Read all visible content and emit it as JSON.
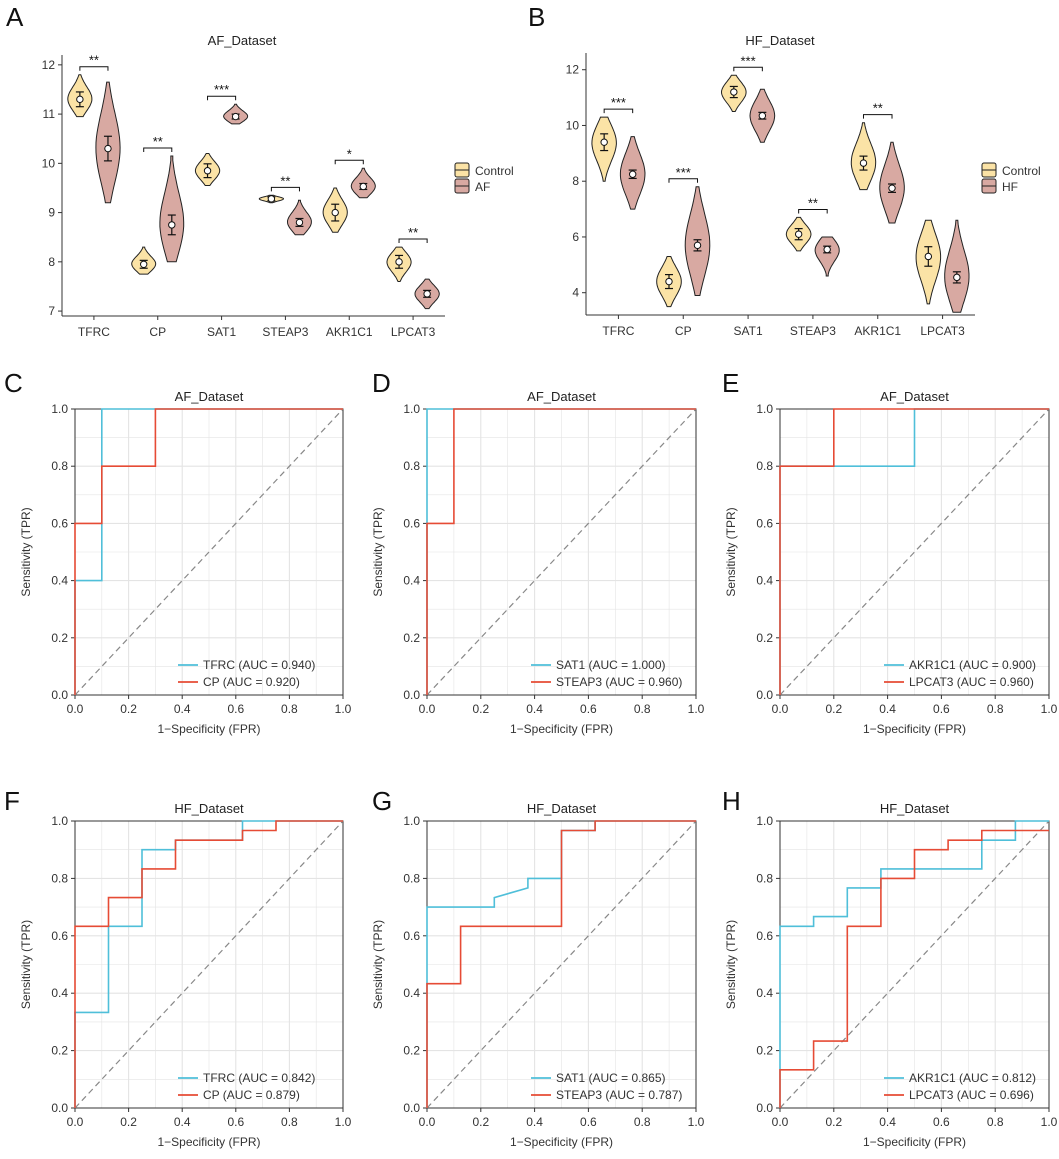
{
  "colors": {
    "control_fill": "#FBE3A6",
    "case_fill": "#D8A9A2",
    "outline": "#222222",
    "roc_series1": "#4FBFD9",
    "roc_series2": "#E64B35",
    "diagonal": "#888888",
    "grid": "#E4E4E4"
  },
  "chart_data": [
    {
      "type": "violin",
      "letter": "A",
      "title": "AF_Dataset",
      "categories": [
        "TFRC",
        "CP",
        "SAT1",
        "STEAP3",
        "AKR1C1",
        "LPCAT3"
      ],
      "ylim": [
        6.9,
        12.2
      ],
      "yticks": [
        7,
        8,
        9,
        10,
        11,
        12
      ],
      "legend": [
        "Control",
        "AF"
      ],
      "groups": [
        {
          "name": "Control",
          "means": [
            11.3,
            7.95,
            9.85,
            9.28,
            9.0,
            8.0
          ],
          "ranges": [
            [
              10.95,
              11.8
            ],
            [
              7.75,
              8.3
            ],
            [
              9.55,
              10.2
            ],
            [
              9.2,
              9.35
            ],
            [
              8.6,
              9.5
            ],
            [
              7.6,
              8.3
            ]
          ],
          "errors": [
            0.15,
            0.08,
            0.14,
            0.04,
            0.17,
            0.13
          ]
        },
        {
          "name": "AF",
          "means": [
            10.3,
            8.75,
            10.95,
            8.8,
            9.53,
            7.35
          ],
          "ranges": [
            [
              9.2,
              11.65
            ],
            [
              8.0,
              10.15
            ],
            [
              10.8,
              11.2
            ],
            [
              8.55,
              9.25
            ],
            [
              9.3,
              9.9
            ],
            [
              7.05,
              7.65
            ]
          ],
          "errors": [
            0.25,
            0.2,
            0.05,
            0.08,
            0.06,
            0.07
          ]
        }
      ],
      "significance": [
        "**",
        "**",
        "***",
        "**",
        "*",
        "**"
      ]
    },
    {
      "type": "violin",
      "letter": "B",
      "title": "HF_Dataset",
      "categories": [
        "TFRC",
        "CP",
        "SAT1",
        "STEAP3",
        "AKR1C1",
        "LPCAT3"
      ],
      "ylim": [
        3.2,
        12.6
      ],
      "yticks": [
        4,
        6,
        8,
        10,
        12
      ],
      "legend": [
        "Control",
        "HF"
      ],
      "groups": [
        {
          "name": "Control",
          "means": [
            9.4,
            4.4,
            11.2,
            6.1,
            8.65,
            5.3
          ],
          "ranges": [
            [
              8.0,
              10.3
            ],
            [
              3.5,
              5.3
            ],
            [
              10.5,
              11.8
            ],
            [
              5.5,
              6.7
            ],
            [
              7.7,
              10.1
            ],
            [
              3.6,
              6.6
            ]
          ],
          "errors": [
            0.3,
            0.25,
            0.2,
            0.2,
            0.25,
            0.35
          ]
        },
        {
          "name": "HF",
          "means": [
            8.25,
            5.7,
            10.35,
            5.55,
            7.75,
            4.55
          ],
          "ranges": [
            [
              7.0,
              9.6
            ],
            [
              3.9,
              7.8
            ],
            [
              9.4,
              11.3
            ],
            [
              4.6,
              6.0
            ],
            [
              6.5,
              9.4
            ],
            [
              3.3,
              6.6
            ]
          ],
          "errors": [
            0.15,
            0.2,
            0.12,
            0.12,
            0.15,
            0.2
          ]
        }
      ],
      "significance": [
        "***",
        "***",
        "***",
        "**",
        "**",
        ""
      ]
    },
    {
      "type": "line",
      "subtype": "roc",
      "letter": "C",
      "title": "AF_Dataset",
      "xlabel": "1−Specificity (FPR)",
      "ylabel": "Sensitivity (TPR)",
      "xlim": [
        0,
        1
      ],
      "ylim": [
        0,
        1
      ],
      "ticks": [
        "0.0",
        "0.2",
        "0.4",
        "0.6",
        "0.8",
        "1.0"
      ],
      "series": [
        {
          "name": "TFRC",
          "auc": "0.940",
          "label": "TFRC (AUC = 0.940)",
          "x": [
            0,
            0,
            0.1,
            0.1,
            1
          ],
          "y": [
            0,
            0.4,
            0.4,
            1,
            1
          ]
        },
        {
          "name": "CP",
          "auc": "0.920",
          "label": "CP (AUC = 0.920)",
          "x": [
            0,
            0,
            0.1,
            0.1,
            0.3,
            0.3,
            1
          ],
          "y": [
            0,
            0.6,
            0.6,
            0.8,
            0.8,
            1,
            1
          ]
        }
      ]
    },
    {
      "type": "line",
      "subtype": "roc",
      "letter": "D",
      "title": "AF_Dataset",
      "xlabel": "1−Specificity (FPR)",
      "ylabel": "Sensitivity (TPR)",
      "xlim": [
        0,
        1
      ],
      "ylim": [
        0,
        1
      ],
      "ticks": [
        "0.0",
        "0.2",
        "0.4",
        "0.6",
        "0.8",
        "1.0"
      ],
      "series": [
        {
          "name": "SAT1",
          "auc": "1.000",
          "label": "SAT1 (AUC = 1.000)",
          "x": [
            0,
            0,
            1
          ],
          "y": [
            0,
            1,
            1
          ]
        },
        {
          "name": "STEAP3",
          "auc": "0.960",
          "label": "STEAP3 (AUC = 0.960)",
          "x": [
            0,
            0,
            0.1,
            0.1,
            1
          ],
          "y": [
            0,
            0.6,
            0.6,
            1,
            1
          ]
        }
      ]
    },
    {
      "type": "line",
      "subtype": "roc",
      "letter": "E",
      "title": "AF_Dataset",
      "xlabel": "1−Specificity (FPR)",
      "ylabel": "Sensitivity (TPR)",
      "xlim": [
        0,
        1
      ],
      "ylim": [
        0,
        1
      ],
      "ticks": [
        "0.0",
        "0.2",
        "0.4",
        "0.6",
        "0.8",
        "1.0"
      ],
      "series": [
        {
          "name": "AKR1C1",
          "auc": "0.900",
          "label": "AKR1C1 (AUC = 0.900)",
          "x": [
            0,
            0,
            0.5,
            0.5,
            1
          ],
          "y": [
            0,
            0.8,
            0.8,
            1,
            1
          ]
        },
        {
          "name": "LPCAT3",
          "auc": "0.960",
          "label": "LPCAT3 (AUC = 0.960)",
          "x": [
            0,
            0,
            0.2,
            0.2,
            1
          ],
          "y": [
            0,
            0.8,
            0.8,
            1,
            1
          ]
        }
      ]
    },
    {
      "type": "line",
      "subtype": "roc",
      "letter": "F",
      "title": "HF_Dataset",
      "xlabel": "1−Specificity (FPR)",
      "ylabel": "Sensitivity (TPR)",
      "xlim": [
        0,
        1
      ],
      "ylim": [
        0,
        1
      ],
      "ticks": [
        "0.0",
        "0.2",
        "0.4",
        "0.6",
        "0.8",
        "1.0"
      ],
      "series": [
        {
          "name": "TFRC",
          "auc": "0.842",
          "label": "TFRC (AUC = 0.842)",
          "x": [
            0,
            0,
            0.125,
            0.125,
            0.25,
            0.25,
            0.375,
            0.375,
            0.625,
            0.625,
            0.75,
            0.75,
            1
          ],
          "y": [
            0,
            0.333,
            0.333,
            0.633,
            0.633,
            0.9,
            0.9,
            0.933,
            0.933,
            1,
            1,
            1,
            1
          ]
        },
        {
          "name": "CP",
          "auc": "0.879",
          "label": "CP (AUC = 0.879)",
          "x": [
            0,
            0,
            0.125,
            0.125,
            0.25,
            0.25,
            0.375,
            0.375,
            0.625,
            0.625,
            0.75,
            0.75,
            1
          ],
          "y": [
            0,
            0.633,
            0.633,
            0.733,
            0.733,
            0.833,
            0.833,
            0.933,
            0.933,
            0.967,
            0.967,
            1,
            1
          ]
        }
      ]
    },
    {
      "type": "line",
      "subtype": "roc",
      "letter": "G",
      "title": "HF_Dataset",
      "xlabel": "1−Specificity (FPR)",
      "ylabel": "Sensitivity (TPR)",
      "xlim": [
        0,
        1
      ],
      "ylim": [
        0,
        1
      ],
      "ticks": [
        "0.0",
        "0.2",
        "0.4",
        "0.6",
        "0.8",
        "1.0"
      ],
      "series": [
        {
          "name": "SAT1",
          "auc": "0.865",
          "label": "SAT1 (AUC = 0.865)",
          "x": [
            0,
            0,
            0.25,
            0.25,
            0.375,
            0.375,
            0.5,
            0.5,
            0.625,
            0.625,
            1
          ],
          "y": [
            0,
            0.7,
            0.7,
            0.733,
            0.767,
            0.8,
            0.8,
            0.967,
            0.967,
            1,
            1
          ]
        },
        {
          "name": "STEAP3",
          "auc": "0.787",
          "label": "STEAP3 (AUC = 0.787)",
          "x": [
            0,
            0,
            0.125,
            0.125,
            0.5,
            0.5,
            0.625,
            0.625,
            1
          ],
          "y": [
            0,
            0.433,
            0.433,
            0.633,
            0.633,
            0.967,
            0.967,
            1,
            1
          ]
        }
      ]
    },
    {
      "type": "line",
      "subtype": "roc",
      "letter": "H",
      "title": "HF_Dataset",
      "xlabel": "1−Specificity (FPR)",
      "ylabel": "Sensitivity (TPR)",
      "xlim": [
        0,
        1
      ],
      "ylim": [
        0,
        1
      ],
      "ticks": [
        "0.0",
        "0.2",
        "0.4",
        "0.6",
        "0.8",
        "1.0"
      ],
      "series": [
        {
          "name": "AKR1C1",
          "auc": "0.812",
          "label": "AKR1C1 (AUC = 0.812)",
          "x": [
            0,
            0,
            0.125,
            0.125,
            0.25,
            0.25,
            0.375,
            0.375,
            0.75,
            0.75,
            0.875,
            0.875,
            1
          ],
          "y": [
            0,
            0.633,
            0.633,
            0.667,
            0.667,
            0.767,
            0.767,
            0.833,
            0.833,
            0.933,
            0.933,
            1,
            1
          ]
        },
        {
          "name": "LPCAT3",
          "auc": "0.696",
          "label": "LPCAT3 (AUC = 0.696)",
          "x": [
            0,
            0,
            0.125,
            0.125,
            0.25,
            0.25,
            0.375,
            0.375,
            0.5,
            0.5,
            0.625,
            0.625,
            0.75,
            0.75,
            1
          ],
          "y": [
            0,
            0.133,
            0.133,
            0.233,
            0.233,
            0.633,
            0.633,
            0.8,
            0.8,
            0.9,
            0.9,
            0.933,
            0.933,
            0.967,
            0.967
          ]
        }
      ]
    }
  ]
}
